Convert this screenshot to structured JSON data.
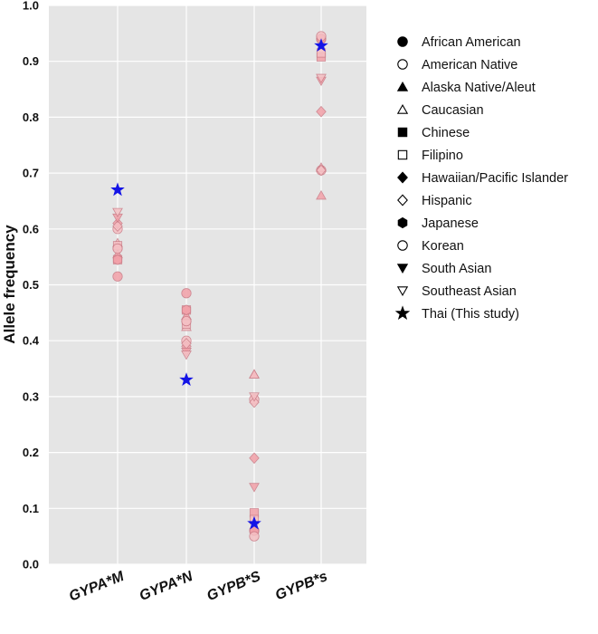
{
  "chart_data": {
    "type": "scatter",
    "title": "",
    "xlabel": "",
    "ylabel": "Allele frequency",
    "ylim": [
      0.0,
      1.0
    ],
    "yticks": [
      "0.0",
      "0.1",
      "0.2",
      "0.3",
      "0.4",
      "0.5",
      "0.6",
      "0.7",
      "0.8",
      "0.9",
      "1.0"
    ],
    "categories": [
      "GYPA*M",
      "GYPA*N",
      "GYPB*S",
      "GYPB*s"
    ],
    "grid": true,
    "legend_position": "right",
    "series": [
      {
        "name": "African American",
        "marker": "circle-filled",
        "values": [
          0.515,
          0.485,
          0.06,
          0.94
        ]
      },
      {
        "name": "American Native",
        "marker": "circle-open",
        "values": [
          0.6,
          0.4,
          0.295,
          0.705
        ]
      },
      {
        "name": "Alaska Native/Aleut",
        "marker": "triangle-filled",
        "values": [
          0.555,
          0.445,
          0.34,
          0.66
        ]
      },
      {
        "name": "Caucasian",
        "marker": "triangle-open",
        "values": [
          0.575,
          0.425,
          0.34,
          0.71
        ]
      },
      {
        "name": "Chinese",
        "marker": "square-filled",
        "values": [
          0.545,
          0.455,
          0.092,
          0.908
        ]
      },
      {
        "name": "Filipino",
        "marker": "square-open",
        "values": [
          0.57,
          0.43,
          0.08,
          0.915
        ]
      },
      {
        "name": "Hawaiian/Pacific Islander",
        "marker": "diamond-filled",
        "values": [
          0.61,
          0.39,
          0.19,
          0.81
        ]
      },
      {
        "name": "Hispanic",
        "marker": "diamond-open",
        "values": [
          0.605,
          0.395,
          0.29,
          0.705
        ]
      },
      {
        "name": "Japanese",
        "marker": "hexagon-filled",
        "values": [
          0.545,
          0.455,
          0.06,
          0.94
        ]
      },
      {
        "name": "Korean",
        "marker": "circle-open-2",
        "values": [
          0.565,
          0.435,
          0.05,
          0.945
        ]
      },
      {
        "name": "South Asian",
        "marker": "triangle-down-filled",
        "values": [
          0.62,
          0.38,
          0.138,
          0.865
        ]
      },
      {
        "name": "Southeast Asian",
        "marker": "triangle-down-open",
        "values": [
          0.63,
          0.375,
          0.3,
          0.87
        ]
      },
      {
        "name": "Thai (This study)",
        "marker": "star-filled",
        "values": [
          0.67,
          0.33,
          0.073,
          0.928
        ]
      }
    ]
  },
  "colors": {
    "panel_bg": "#e5e5e5",
    "grid": "#ffffff",
    "pop_fill": "#f2a0a8",
    "pop_fill_light": "#f5c0c4",
    "pop_edge": "#c97a85",
    "thai": "#1414e6",
    "legend_marker": "#000000"
  }
}
